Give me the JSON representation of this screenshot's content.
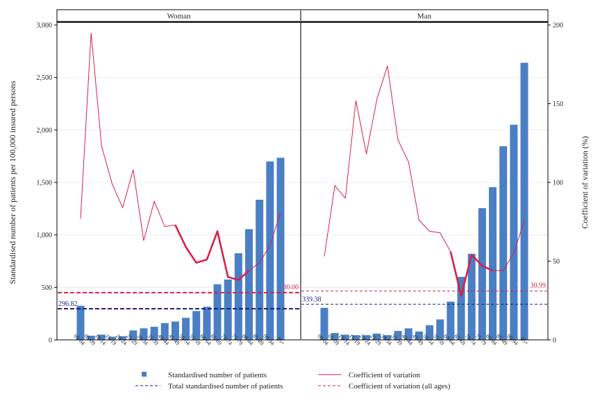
{
  "chart_data": {
    "type": "bar",
    "categories": [
      "00-04",
      "05-09",
      "10-14",
      "15-19",
      "20-24",
      "25-29",
      "30-34",
      "35-39",
      "40-44",
      "45-49",
      "50-54",
      "55-59",
      "60-64",
      "65-69",
      "70-74",
      "75-79",
      "80-84",
      "85-89",
      "90-94",
      "95+"
    ],
    "ylabel_left": "Standardised number of patients per 100,000 insured persons",
    "ylabel_right": "Coefficient of variation (%)",
    "ylim_left": [
      0,
      3000
    ],
    "ylim_right": [
      0,
      200
    ],
    "yticks_left": [
      "0",
      "500",
      "1,000",
      "1,500",
      "2,000",
      "2,500",
      "3,000"
    ],
    "yticks_right": [
      "0",
      "50",
      "100",
      "150",
      "200"
    ],
    "panels": [
      {
        "title": "Woman",
        "bars": [
          325,
          40,
          50,
          30,
          35,
          90,
          110,
          125,
          160,
          175,
          210,
          275,
          315,
          530,
          575,
          825,
          1055,
          1335,
          1700,
          1735
        ],
        "cv": [
          77,
          195,
          123,
          99,
          84,
          108,
          63,
          88,
          72,
          73,
          59,
          49,
          51,
          69,
          40,
          38,
          44,
          49,
          60,
          81
        ],
        "cv_thick_ranges": [
          [
            9,
            16
          ]
        ],
        "total_value": 296.82,
        "total_label": "296.82",
        "cv_all": 30.0,
        "cv_all_label": "30.00"
      },
      {
        "title": "Man",
        "bars": [
          305,
          65,
          50,
          45,
          45,
          60,
          45,
          85,
          110,
          80,
          140,
          195,
          365,
          600,
          820,
          1255,
          1455,
          1845,
          2050,
          2640
        ],
        "cv": [
          53,
          98,
          90,
          152,
          118,
          153,
          174,
          127,
          113,
          76,
          69,
          68,
          56,
          28,
          54,
          47,
          44,
          44,
          55,
          76
        ],
        "cv_thick_ranges": [
          [
            12,
            16
          ]
        ],
        "total_value": 339.38,
        "total_label": "339.38",
        "cv_all": 30.99,
        "cv_all_label": "30.99"
      }
    ],
    "legend": [
      {
        "label": "Standardised number of patients",
        "kind": "bar"
      },
      {
        "label": "Coefficient of variation",
        "kind": "line"
      },
      {
        "label": "Total standardised number of patients",
        "kind": "navy-dash"
      },
      {
        "label": "Coefficient of variation (all ages)",
        "kind": "red-dash"
      }
    ],
    "colors": {
      "bar": "#4a7fc4",
      "cv_line": "#d81f48",
      "total_line": "#1c1c7a",
      "cv_all_line": "#d81f48"
    }
  }
}
